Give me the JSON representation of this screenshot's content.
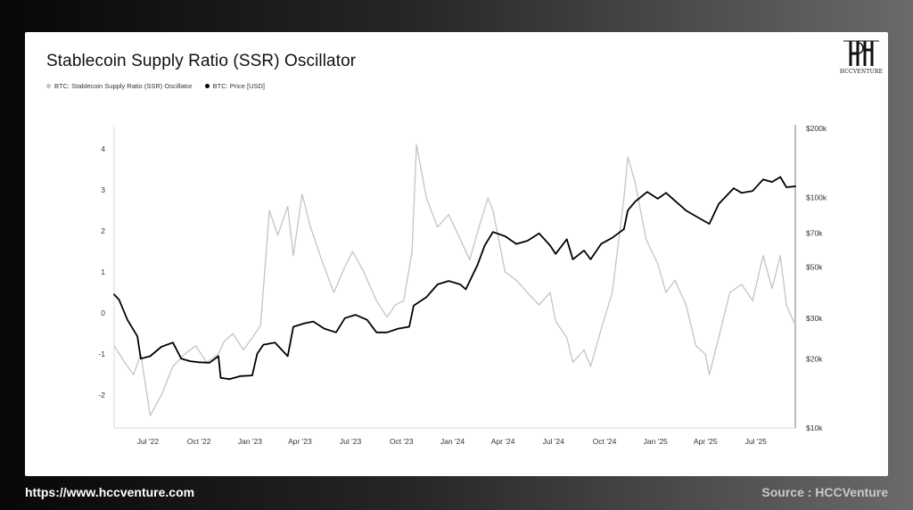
{
  "footer": {
    "url": "https://www.hccventure.com",
    "source": "Source : HCCVenture"
  },
  "logo": {
    "text": "HCCVENTURE"
  },
  "chart_data": {
    "type": "line",
    "title": "Stablecoin Supply Ratio (SSR) Oscillator",
    "legend": [
      {
        "name": "BTC: Stablecoin Supply Ratio (SSR) Oscillator",
        "color": "#c4c4c4"
      },
      {
        "name": "BTC: Price [USD]",
        "color": "#000000"
      }
    ],
    "grid": false,
    "x_ticks": [
      "Jul '22",
      "Oct '22",
      "Jan '23",
      "Apr '23",
      "Jul '23",
      "Oct '23",
      "Jan '24",
      "Apr '24",
      "Jul '24",
      "Oct '24",
      "Jan '25",
      "Apr '25",
      "Jul '25"
    ],
    "x_range": [
      "2022-05-01",
      "2025-09-10"
    ],
    "y_left": {
      "ticks": [
        4,
        3,
        2,
        1,
        0,
        -1,
        -2
      ],
      "range": [
        -2.8,
        4.5
      ]
    },
    "y_right": {
      "scale": "log",
      "ticks": [
        "$200k",
        "$100k",
        "$70k",
        "$50k",
        "$30k",
        "$20k",
        "$10k"
      ],
      "tick_values": [
        200000,
        100000,
        70000,
        50000,
        30000,
        20000,
        10000
      ],
      "range": [
        10000,
        200000
      ]
    },
    "series": [
      {
        "name": "BTC: Stablecoin Supply Ratio (SSR) Oscillator",
        "axis": "left",
        "x": [
          "2022-05-01",
          "2022-05-20",
          "2022-06-05",
          "2022-06-18",
          "2022-07-05",
          "2022-07-25",
          "2022-08-15",
          "2022-09-05",
          "2022-09-25",
          "2022-10-15",
          "2022-11-05",
          "2022-11-15",
          "2022-12-01",
          "2022-12-20",
          "2023-01-05",
          "2023-01-20",
          "2023-02-05",
          "2023-02-20",
          "2023-03-10",
          "2023-03-20",
          "2023-04-05",
          "2023-04-20",
          "2023-05-10",
          "2023-06-01",
          "2023-06-20",
          "2023-07-05",
          "2023-07-25",
          "2023-08-17",
          "2023-09-05",
          "2023-09-20",
          "2023-10-05",
          "2023-10-20",
          "2023-10-28",
          "2023-11-15",
          "2023-12-05",
          "2023-12-25",
          "2024-01-15",
          "2024-02-01",
          "2024-02-20",
          "2024-03-05",
          "2024-03-14",
          "2024-04-05",
          "2024-04-25",
          "2024-05-15",
          "2024-06-05",
          "2024-06-25",
          "2024-07-05",
          "2024-07-25",
          "2024-08-05",
          "2024-08-25",
          "2024-09-06",
          "2024-09-25",
          "2024-10-15",
          "2024-11-05",
          "2024-11-12",
          "2024-11-25",
          "2024-12-15",
          "2025-01-05",
          "2025-01-20",
          "2025-02-05",
          "2025-02-25",
          "2025-03-15",
          "2025-04-01",
          "2025-04-08",
          "2025-04-25",
          "2025-05-15",
          "2025-06-05",
          "2025-06-25",
          "2025-07-14",
          "2025-07-30",
          "2025-08-14",
          "2025-08-25",
          "2025-09-10"
        ],
        "values": [
          -0.8,
          -1.2,
          -1.5,
          -1.0,
          -2.5,
          -2.0,
          -1.3,
          -1.0,
          -0.8,
          -1.2,
          -1.0,
          -0.7,
          -0.5,
          -0.9,
          -0.6,
          -0.3,
          2.5,
          1.9,
          2.6,
          1.4,
          2.9,
          2.1,
          1.3,
          0.5,
          1.1,
          1.5,
          1.0,
          0.3,
          -0.1,
          0.2,
          0.3,
          1.5,
          4.1,
          2.8,
          2.1,
          2.4,
          1.8,
          1.3,
          2.2,
          2.8,
          2.5,
          1.0,
          0.8,
          0.5,
          0.2,
          0.5,
          -0.2,
          -0.6,
          -1.2,
          -0.9,
          -1.3,
          -0.4,
          0.5,
          2.8,
          3.8,
          3.2,
          1.8,
          1.2,
          0.5,
          0.8,
          0.2,
          -0.8,
          -1.0,
          -1.5,
          -0.6,
          0.5,
          0.7,
          0.3,
          1.4,
          0.6,
          1.4,
          0.2,
          -0.3
        ]
      },
      {
        "name": "BTC: Price [USD]",
        "axis": "right",
        "x": [
          "2022-05-01",
          "2022-05-10",
          "2022-05-25",
          "2022-06-12",
          "2022-06-18",
          "2022-07-05",
          "2022-07-25",
          "2022-08-15",
          "2022-08-30",
          "2022-09-15",
          "2022-10-01",
          "2022-10-20",
          "2022-11-05",
          "2022-11-09",
          "2022-11-25",
          "2022-12-15",
          "2023-01-05",
          "2023-01-14",
          "2023-01-25",
          "2023-02-15",
          "2023-03-10",
          "2023-03-20",
          "2023-04-10",
          "2023-04-25",
          "2023-05-15",
          "2023-06-05",
          "2023-06-21",
          "2023-07-10",
          "2023-07-31",
          "2023-08-17",
          "2023-09-05",
          "2023-09-25",
          "2023-10-15",
          "2023-10-23",
          "2023-11-15",
          "2023-12-05",
          "2023-12-25",
          "2024-01-15",
          "2024-01-25",
          "2024-02-15",
          "2024-02-28",
          "2024-03-14",
          "2024-04-05",
          "2024-04-25",
          "2024-05-15",
          "2024-06-05",
          "2024-06-25",
          "2024-07-05",
          "2024-07-25",
          "2024-08-05",
          "2024-08-25",
          "2024-09-06",
          "2024-09-25",
          "2024-10-15",
          "2024-11-05",
          "2024-11-12",
          "2024-11-25",
          "2024-12-17",
          "2025-01-05",
          "2025-01-20",
          "2025-02-05",
          "2025-02-25",
          "2025-03-15",
          "2025-04-08",
          "2025-04-25",
          "2025-05-22",
          "2025-06-05",
          "2025-06-25",
          "2025-07-14",
          "2025-07-30",
          "2025-08-14",
          "2025-08-25",
          "2025-09-10"
        ],
        "values": [
          38000,
          36000,
          29500,
          25000,
          20000,
          20500,
          22500,
          23500,
          20000,
          19500,
          19300,
          19200,
          20500,
          16500,
          16300,
          16800,
          16900,
          21000,
          23000,
          23500,
          20500,
          27500,
          28500,
          29000,
          27000,
          26000,
          30000,
          31000,
          29500,
          26000,
          26000,
          27000,
          27500,
          34000,
          37000,
          42000,
          43500,
          42000,
          40000,
          51000,
          62000,
          71000,
          68000,
          63000,
          65000,
          70000,
          62000,
          57000,
          66000,
          54000,
          59000,
          54000,
          63000,
          67000,
          73000,
          88000,
          96000,
          106000,
          99000,
          105000,
          97000,
          88000,
          83000,
          77000,
          94000,
          110000,
          105000,
          107000,
          120000,
          117000,
          123000,
          111000,
          112000
        ]
      }
    ]
  }
}
